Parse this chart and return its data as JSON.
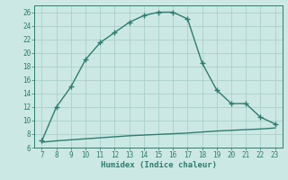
{
  "xlabel": "Humidex (Indice chaleur)",
  "x_main": [
    7,
    8,
    9,
    10,
    11,
    12,
    13,
    14,
    15,
    16,
    17,
    18,
    19,
    20,
    21,
    22,
    23
  ],
  "y_main": [
    7,
    12,
    15,
    19,
    21.5,
    23,
    24.5,
    25.5,
    26,
    26,
    25,
    18.5,
    14.5,
    12.5,
    12.5,
    10.5,
    9.5
  ],
  "x_lower": [
    7,
    8,
    9,
    10,
    11,
    12,
    13,
    14,
    15,
    16,
    17,
    18,
    19,
    20,
    21,
    22,
    23
  ],
  "y_lower": [
    6.8,
    7.0,
    7.15,
    7.3,
    7.45,
    7.6,
    7.75,
    7.85,
    7.95,
    8.05,
    8.15,
    8.3,
    8.45,
    8.55,
    8.65,
    8.75,
    8.9
  ],
  "line_color": "#2d7d6f",
  "bg_color": "#cce8e4",
  "grid_color": "#aacfca",
  "xlim": [
    6.5,
    23.5
  ],
  "ylim": [
    6,
    27
  ],
  "xticks": [
    7,
    8,
    9,
    10,
    11,
    12,
    13,
    14,
    15,
    16,
    17,
    18,
    19,
    20,
    21,
    22,
    23
  ],
  "yticks": [
    6,
    8,
    10,
    12,
    14,
    16,
    18,
    20,
    22,
    24,
    26
  ],
  "tick_fontsize": 5.5,
  "xlabel_fontsize": 6.5,
  "marker_size": 2.5,
  "line_width": 1.0
}
